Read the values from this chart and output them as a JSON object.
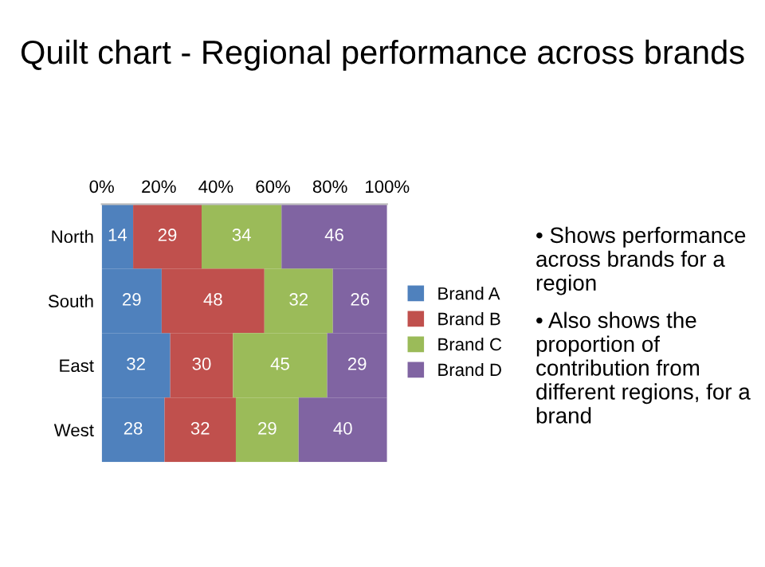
{
  "chart_data": {
    "type": "bar",
    "orientation": "horizontal",
    "stacked": true,
    "title": "Quilt chart - Regional performance across brands",
    "categories": [
      "North",
      "South",
      "East",
      "West"
    ],
    "series": [
      {
        "name": "Brand A",
        "color": "#4f81bd",
        "values": [
          11,
          21,
          24,
          22
        ]
      },
      {
        "name": "Brand B",
        "color": "#c0504d",
        "values": [
          24,
          36,
          22,
          25
        ]
      },
      {
        "name": "Brand C",
        "color": "#9bbb59",
        "values": [
          28,
          24,
          33,
          22
        ]
      },
      {
        "name": "Brand D",
        "color": "#8064a2",
        "values": [
          37,
          19,
          21,
          31
        ]
      }
    ],
    "xlim": [
      0,
      100
    ],
    "xticks": [
      {
        "value": 0,
        "label": "0%"
      },
      {
        "value": 20,
        "label": "20%"
      },
      {
        "value": 40,
        "label": "40%"
      },
      {
        "value": 60,
        "label": "60%"
      },
      {
        "value": 80,
        "label": "80%"
      },
      {
        "value": 100,
        "label": "100%"
      }
    ],
    "legend": "right",
    "grid": false,
    "annotations": [
      "• Shows performance across brands for a region",
      "• Also shows the proportion of contribution from different regions, for a brand",
      {
        "text": "14",
        "x": 5.5,
        "y": "North"
      },
      {
        "text": "29",
        "x": 23,
        "y": "North"
      },
      {
        "text": "34",
        "x": 49,
        "y": "North"
      },
      {
        "text": "46",
        "x": 81.5,
        "y": "North"
      },
      {
        "text": "29",
        "x": 10.5,
        "y": "South"
      },
      {
        "text": "48",
        "x": 39,
        "y": "South"
      },
      {
        "text": "32",
        "x": 69,
        "y": "South"
      },
      {
        "text": "26",
        "x": 90.5,
        "y": "South"
      },
      {
        "text": "32",
        "x": 12,
        "y": "East"
      },
      {
        "text": "30",
        "x": 35,
        "y": "East"
      },
      {
        "text": "45",
        "x": 62.5,
        "y": "East"
      },
      {
        "text": "29",
        "x": 89.5,
        "y": "East"
      },
      {
        "text": "28",
        "x": 11,
        "y": "West"
      },
      {
        "text": "32",
        "x": 34.5,
        "y": "West"
      },
      {
        "text": "29",
        "x": 58,
        "y": "West"
      },
      {
        "text": "40",
        "x": 84.5,
        "y": "West"
      }
    ]
  }
}
